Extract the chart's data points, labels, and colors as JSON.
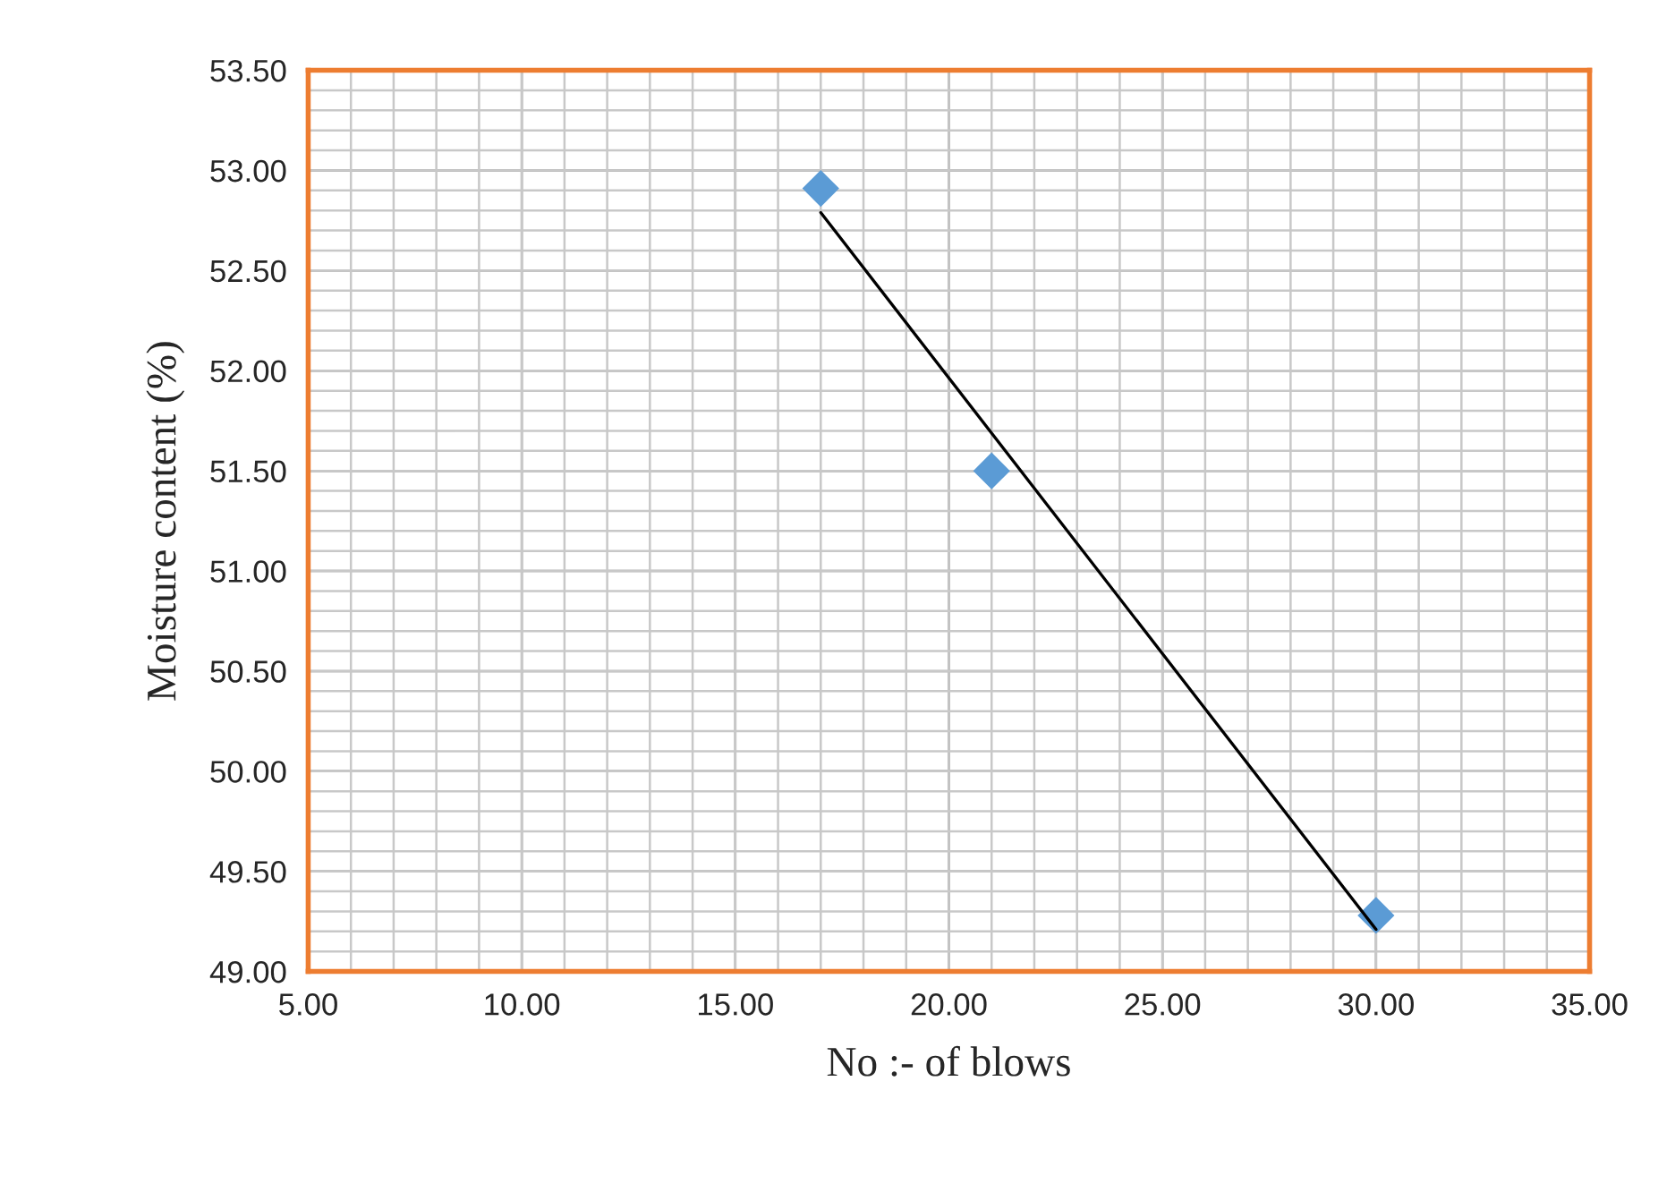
{
  "chart_data": {
    "type": "scatter",
    "xlabel": "No :- of blows",
    "ylabel": "Moisture content (%)",
    "series": [
      {
        "color": "#5b9bd5",
        "marker": "diamond",
        "x": [
          17,
          21,
          30
        ],
        "values": [
          52.91,
          51.5,
          49.28
        ]
      },
      {
        "type": "line",
        "color": "#000000",
        "marker": "none",
        "line_style": "solid",
        "x": [
          17,
          30
        ],
        "values": [
          52.79,
          49.21
        ]
      }
    ],
    "xlim": [
      5,
      35
    ],
    "xticks": [
      {
        "value": 5,
        "label": "5.00"
      },
      {
        "value": 10,
        "label": "10.00"
      },
      {
        "value": 15,
        "label": "15.00"
      },
      {
        "value": 20,
        "label": "20.00"
      },
      {
        "value": 25,
        "label": "25.00"
      },
      {
        "value": 30,
        "label": "30.00"
      },
      {
        "value": 35,
        "label": "35.00"
      }
    ],
    "ylim": [
      49,
      53.5
    ],
    "yticks": [
      {
        "value": 49,
        "label": "49.00"
      },
      {
        "value": 49.5,
        "label": "49.50"
      },
      {
        "value": 50,
        "label": "50.00"
      },
      {
        "value": 50.5,
        "label": "50.50"
      },
      {
        "value": 51,
        "label": "51.00"
      },
      {
        "value": 51.5,
        "label": "51.50"
      },
      {
        "value": 52,
        "label": "52.00"
      },
      {
        "value": 52.5,
        "label": "52.50"
      },
      {
        "value": 53,
        "label": "53.00"
      },
      {
        "value": 53.5,
        "label": "53.50"
      }
    ],
    "grid": true
  }
}
